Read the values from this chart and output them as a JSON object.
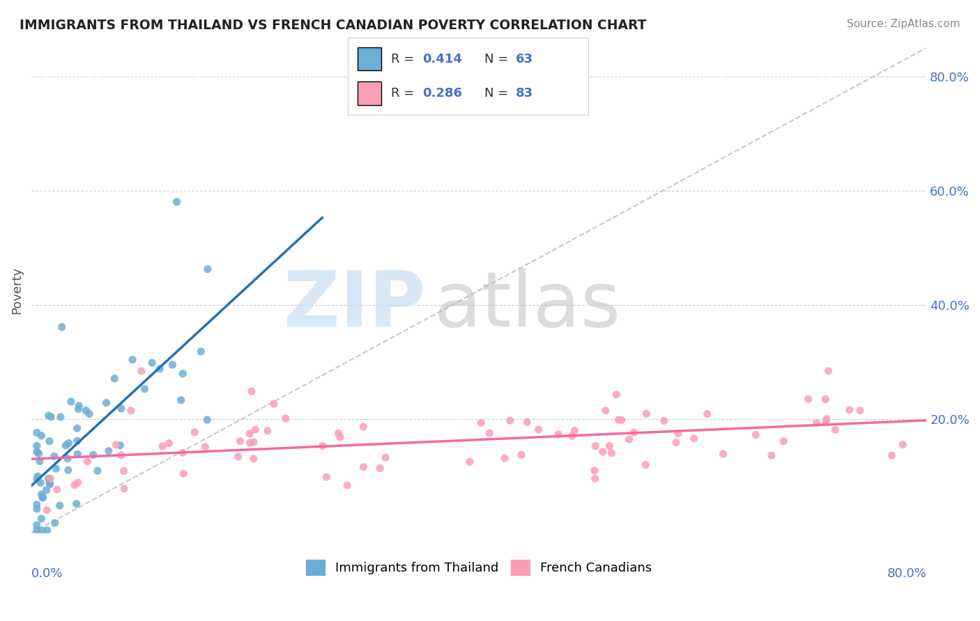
{
  "title": "IMMIGRANTS FROM THAILAND VS FRENCH CANADIAN POVERTY CORRELATION CHART",
  "source": "Source: ZipAtlas.com",
  "ylabel": "Poverty",
  "xlim": [
    0,
    0.8
  ],
  "ylim": [
    0,
    0.85
  ],
  "blue_R": 0.414,
  "blue_N": 63,
  "pink_R": 0.286,
  "pink_N": 83,
  "blue_color": "#6baed6",
  "pink_color": "#fa9fb5",
  "blue_line_color": "#2171b5",
  "pink_line_color": "#f768a1",
  "background_color": "#ffffff",
  "grid_color": "#cccccc",
  "ref_line_color": "#bbbbbb",
  "title_color": "#222222",
  "source_color": "#888888",
  "axis_label_color": "#4472c4",
  "ylabel_color": "#555555",
  "legend_R_color": "#4472c4",
  "legend_N_color": "#333333",
  "watermark_zip_color": "#c8dff0",
  "watermark_atlas_color": "#c0c0c0"
}
